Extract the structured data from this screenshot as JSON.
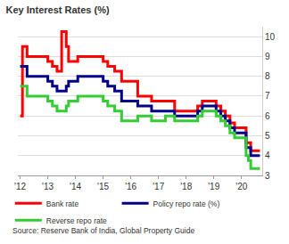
{
  "chart_data": {
    "type": "line",
    "title": "Key Interest Rates (%)",
    "source": "Source: Reserve Bank of India, Global Property Guide",
    "categories": [
      "'12",
      null,
      null,
      null,
      null,
      null,
      null,
      null,
      null,
      null,
      null,
      null,
      "'13",
      null,
      null,
      null,
      null,
      null,
      null,
      null,
      null,
      null,
      null,
      null,
      "'14",
      null,
      null,
      null,
      null,
      null,
      null,
      null,
      null,
      null,
      null,
      null,
      "'15",
      null,
      null,
      null,
      null,
      null,
      null,
      null,
      null,
      null,
      null,
      null,
      "'16",
      null,
      null,
      null,
      null,
      null,
      null,
      null,
      null,
      null,
      null,
      null,
      "'17",
      null,
      null,
      null,
      null,
      null,
      null,
      null,
      null,
      null,
      null,
      null,
      "'18",
      null,
      null,
      null,
      null,
      null,
      null,
      null,
      null,
      null,
      null,
      null,
      "'19",
      null,
      null,
      null,
      null,
      null,
      null,
      null,
      null,
      null,
      null,
      null,
      "'20",
      null,
      null,
      null,
      null,
      null,
      null,
      null,
      null
    ],
    "series": [
      {
        "name": "Bank rate",
        "color": "#ff0000",
        "values": [
          6,
          9.5,
          9.5,
          9,
          9,
          9,
          9,
          9,
          9,
          9,
          9,
          9,
          8.75,
          8.75,
          8.5,
          8.5,
          8.25,
          8.25,
          10.25,
          10.25,
          9.5,
          8.75,
          8.75,
          8.75,
          8.75,
          9,
          9,
          9,
          9,
          9,
          9,
          9,
          9,
          9,
          9,
          9,
          8.75,
          8.75,
          8.5,
          8.5,
          8.5,
          8.25,
          8.25,
          8.25,
          7.75,
          7.75,
          7.75,
          7.75,
          7.75,
          7.75,
          7.75,
          7,
          7,
          7,
          7,
          7,
          7,
          6.75,
          6.75,
          6.75,
          6.75,
          6.75,
          6.75,
          6.75,
          6.75,
          6.75,
          6.75,
          6.25,
          6.25,
          6.25,
          6.25,
          6.25,
          6.25,
          6.25,
          6.25,
          6.25,
          6.25,
          6.5,
          6.5,
          6.75,
          6.75,
          6.75,
          6.75,
          6.75,
          6.75,
          6.5,
          6.5,
          6.25,
          6.25,
          6,
          6,
          5.65,
          5.65,
          5.4,
          5.4,
          5.4,
          5.4,
          5.4,
          4.65,
          4.65,
          4.25,
          4.25,
          4.25,
          4.25,
          4.25
        ]
      },
      {
        "name": "Policy repo rate (%)",
        "color": "#00008b",
        "values": [
          8.5,
          8.5,
          8.5,
          8,
          8,
          8,
          8,
          8,
          8,
          8,
          8,
          8,
          7.75,
          7.75,
          7.5,
          7.5,
          7.25,
          7.25,
          7.25,
          7.25,
          7.5,
          7.75,
          7.75,
          7.75,
          7.75,
          8,
          8,
          8,
          8,
          8,
          8,
          8,
          8,
          8,
          8,
          8,
          7.75,
          7.75,
          7.5,
          7.5,
          7.5,
          7.25,
          7.25,
          7.25,
          6.75,
          6.75,
          6.75,
          6.75,
          6.75,
          6.75,
          6.75,
          6.5,
          6.5,
          6.5,
          6.5,
          6.5,
          6.5,
          6.25,
          6.25,
          6.25,
          6.25,
          6.25,
          6.25,
          6.25,
          6.25,
          6.25,
          6.25,
          6,
          6,
          6,
          6,
          6,
          6,
          6,
          6,
          6,
          6,
          6.25,
          6.25,
          6.5,
          6.5,
          6.5,
          6.5,
          6.5,
          6.5,
          6.25,
          6.25,
          6,
          6,
          5.75,
          5.75,
          5.4,
          5.4,
          5.15,
          5.15,
          5.15,
          5.15,
          5.15,
          4.4,
          4.4,
          4,
          4,
          4,
          4,
          4
        ]
      },
      {
        "name": "Reverse repo rate",
        "color": "#33cc33",
        "values": [
          7.5,
          7.5,
          7.5,
          7,
          7,
          7,
          7,
          7,
          7,
          7,
          7,
          7,
          6.75,
          6.75,
          6.5,
          6.5,
          6.25,
          6.25,
          6.25,
          6.25,
          6.5,
          6.75,
          6.75,
          6.75,
          6.75,
          7,
          7,
          7,
          7,
          7,
          7,
          7,
          7,
          7,
          7,
          7,
          6.75,
          6.75,
          6.5,
          6.5,
          6.5,
          6.25,
          6.25,
          6.25,
          5.75,
          5.75,
          5.75,
          5.75,
          5.75,
          5.75,
          5.75,
          6,
          6,
          6,
          6,
          6,
          6,
          5.75,
          5.75,
          5.75,
          5.75,
          5.75,
          5.75,
          6,
          6,
          6,
          6,
          5.75,
          5.75,
          5.75,
          5.75,
          5.75,
          5.75,
          5.75,
          5.75,
          5.75,
          5.75,
          6,
          6,
          6.25,
          6.25,
          6.25,
          6.25,
          6.25,
          6.25,
          6,
          6,
          5.75,
          5.75,
          5.5,
          5.5,
          5.15,
          5.15,
          4.9,
          4.9,
          4.9,
          4.9,
          4.9,
          4,
          3.75,
          3.35,
          3.35,
          3.35,
          3.35,
          3.35
        ]
      }
    ],
    "ylim": [
      3,
      10.5
    ],
    "yticks": [
      3,
      4,
      5,
      6,
      7,
      8,
      9,
      10
    ],
    "grid": true,
    "legend": "bottom"
  }
}
